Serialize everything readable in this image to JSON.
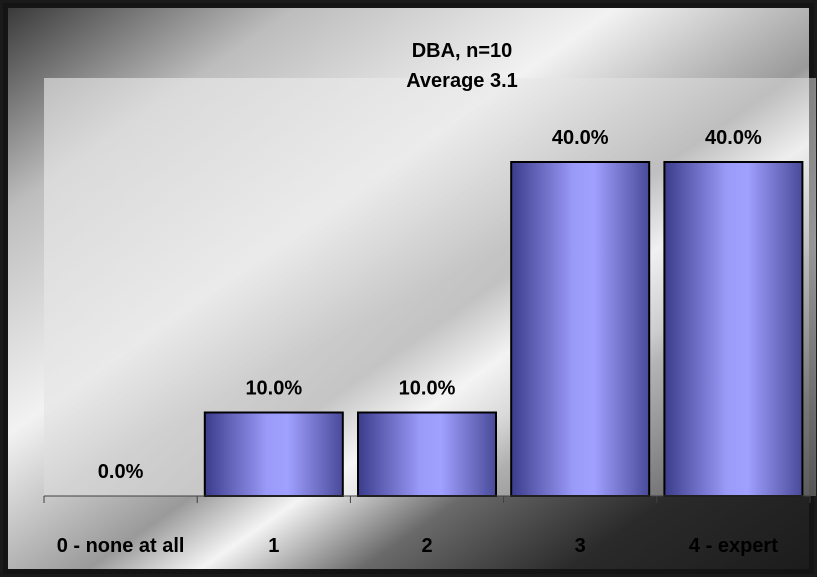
{
  "chart_data": {
    "type": "bar",
    "title": "DBA, n=10",
    "subtitle": "Average 3.1",
    "categories": [
      "0 - none at all",
      "1",
      "2",
      "3",
      "4 - expert"
    ],
    "values": [
      0.0,
      10.0,
      10.0,
      40.0,
      40.0
    ],
    "data_labels": [
      "0.0%",
      "10.0%",
      "10.0%",
      "40.0%",
      "40.0%"
    ],
    "ylim": [
      0,
      40
    ],
    "xlabel": "",
    "ylabel": "",
    "grid": false,
    "colors": {
      "bar_dark": "#3c3c8c",
      "bar_light": "#a0a0ff",
      "text": "#000000"
    }
  }
}
